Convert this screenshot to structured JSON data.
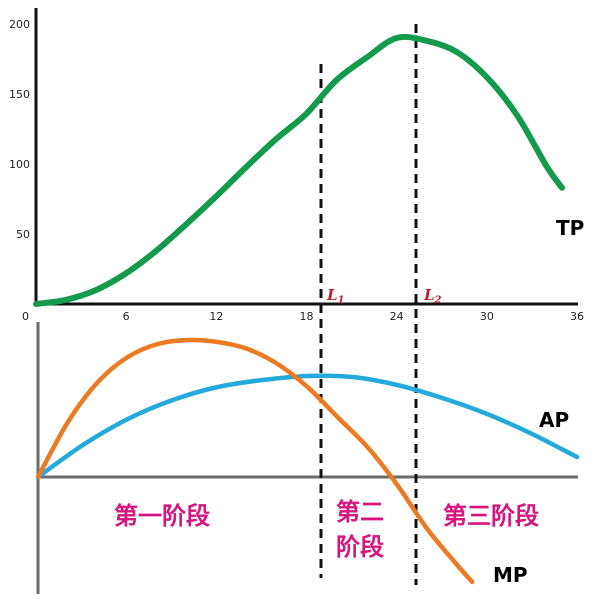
{
  "chart_data": [
    {
      "type": "line",
      "title": "",
      "xlabel": "",
      "ylabel": "",
      "xlim": [
        0,
        36
      ],
      "ylim": [
        0,
        200
      ],
      "x_ticks": [
        "0",
        "6",
        "12",
        "18",
        "24",
        "30",
        "36"
      ],
      "y_ticks": [
        "50",
        "100",
        "150",
        "200"
      ],
      "grid": false,
      "series": [
        {
          "name": "TP",
          "color": "#149a4b",
          "x": [
            0,
            2,
            4,
            6,
            8,
            10,
            12,
            14,
            16,
            18,
            20,
            22,
            24,
            26,
            28,
            30,
            32,
            34,
            35
          ],
          "y": [
            0,
            3,
            10,
            22,
            38,
            57,
            77,
            98,
            118,
            136,
            160,
            176,
            190,
            188,
            180,
            162,
            135,
            98,
            83
          ]
        }
      ],
      "vlines": [
        {
          "x": 18.5,
          "label": "L",
          "sub": "1"
        },
        {
          "x": 24,
          "label": "L",
          "sub": "2"
        }
      ]
    },
    {
      "type": "line",
      "title": "",
      "xlabel": "",
      "ylabel": "",
      "xlim": [
        0,
        36
      ],
      "series": [
        {
          "name": "AP",
          "color": "#24a9dc",
          "x": [
            0,
            3,
            6,
            9,
            12,
            15,
            18,
            21,
            24,
            27,
            30,
            33,
            36
          ],
          "y": [
            0,
            32,
            58,
            77,
            90,
            97,
            101,
            100,
            92,
            79,
            63,
            43,
            20
          ]
        },
        {
          "name": "MP",
          "color": "#ec7a22",
          "x": [
            0,
            2,
            4,
            6,
            8,
            10,
            12,
            14,
            16,
            18,
            20,
            22,
            24,
            26,
            28,
            29
          ],
          "y": [
            0,
            55,
            95,
            120,
            133,
            137,
            135,
            128,
            113,
            90,
            60,
            30,
            -8,
            -52,
            -88,
            -105
          ]
        }
      ],
      "stages": [
        "第一阶段",
        "第二阶段",
        "第三阶段"
      ]
    }
  ],
  "labels": {
    "tp": "TP",
    "ap": "AP",
    "mp": "MP",
    "l1": "L",
    "l1_sub": "1",
    "l2": "L",
    "l2_sub": "2",
    "stage1": "第一阶段",
    "stage2_line1": "第二",
    "stage2_line2": "阶段",
    "stage3": "第三阶段"
  }
}
